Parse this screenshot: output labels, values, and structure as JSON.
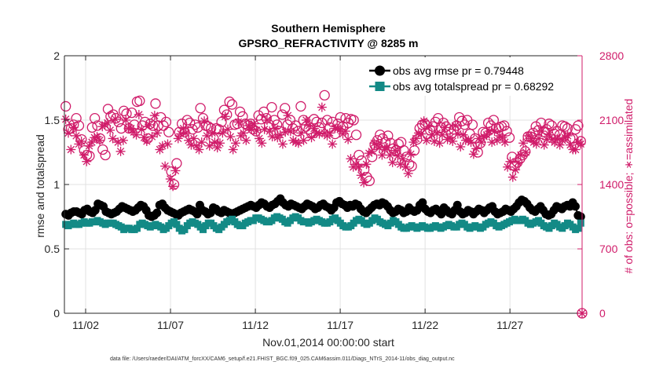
{
  "colors": {
    "rmse": "#000000",
    "spread": "#138a86",
    "obs": "#d01c6a",
    "grid": "#e2e2e2",
    "axis": "#262626"
  },
  "chart_data": {
    "type": "line",
    "title": "Southern Hemisphere",
    "subtitle": "GPSRO_REFRACTIVITY @ 8285 m",
    "xlabel": "Nov.01,2014 00:00:00 start",
    "ylabel_left": "rmse and totalspread",
    "ylabel_right": "# of obs: o=possible; ∗=assimilated",
    "footer": "data file: /Users/raeder/DAI/ATM_forcXX/CAM6_setup/f.e21.FHIST_BGC.f09_025.CAM6assim.011/Diags_NTrS_2014-11/obs_diag_output.nc",
    "xlim": [
      0.25,
      30.75
    ],
    "ylim_left": [
      0,
      2
    ],
    "ylim_right": [
      0,
      2800
    ],
    "x_tick_values": [
      1.5,
      6.5,
      11.5,
      16.5,
      21.5,
      26.5
    ],
    "x_tick_labels": [
      "11/02",
      "11/07",
      "11/12",
      "11/17",
      "11/22",
      "11/27"
    ],
    "y_left_ticks": [
      "0",
      "0.5",
      "1",
      "1.5",
      "2"
    ],
    "y_left_tick_values": [
      0,
      0.5,
      1,
      1.5,
      2
    ],
    "y_right_ticks": [
      "0",
      "700",
      "1400",
      "2100",
      "2800"
    ],
    "y_right_tick_values": [
      0,
      700,
      1400,
      2100,
      2800
    ],
    "grid": true,
    "legend_position": "top-right",
    "series": [
      {
        "name": "obs avg rmse pr = 0.79448",
        "axis": "left",
        "marker": "circle",
        "key": "rmse",
        "values": [
          0.77,
          0.76,
          0.78,
          0.79,
          0.79,
          0.78,
          0.77,
          0.8,
          0.81,
          0.79,
          0.78,
          0.8,
          0.85,
          0.84,
          0.83,
          0.79,
          0.78,
          0.77,
          0.78,
          0.79,
          0.81,
          0.83,
          0.82,
          0.81,
          0.8,
          0.79,
          0.8,
          0.82,
          0.84,
          0.83,
          0.8,
          0.76,
          0.75,
          0.76,
          0.78,
          0.84,
          0.85,
          0.82,
          0.8,
          0.79,
          0.78,
          0.77,
          0.76,
          0.78,
          0.79,
          0.8,
          0.81,
          0.8,
          0.79,
          0.77,
          0.84,
          0.8,
          0.79,
          0.77,
          0.78,
          0.82,
          0.81,
          0.79,
          0.78,
          0.8,
          0.79,
          0.78,
          0.77,
          0.78,
          0.79,
          0.8,
          0.81,
          0.82,
          0.83,
          0.84,
          0.83,
          0.82,
          0.84,
          0.86,
          0.85,
          0.83,
          0.82,
          0.84,
          0.85,
          0.87,
          0.89,
          0.86,
          0.84,
          0.83,
          0.85,
          0.84,
          0.83,
          0.82,
          0.81,
          0.83,
          0.85,
          0.84,
          0.83,
          0.81,
          0.82,
          0.84,
          0.85,
          0.83,
          0.82,
          0.8,
          0.82,
          0.86,
          0.87,
          0.85,
          0.84,
          0.82,
          0.84,
          0.83,
          0.85,
          0.84,
          0.81,
          0.79,
          0.78,
          0.8,
          0.82,
          0.84,
          0.85,
          0.84,
          0.86,
          0.85,
          0.83,
          0.8,
          0.78,
          0.79,
          0.81,
          0.8,
          0.78,
          0.79,
          0.82,
          0.8,
          0.79,
          0.8,
          0.84,
          0.86,
          0.81,
          0.79,
          0.78,
          0.8,
          0.81,
          0.79,
          0.77,
          0.82,
          0.8,
          0.78,
          0.77,
          0.8,
          0.84,
          0.79,
          0.77,
          0.78,
          0.8,
          0.79,
          0.77,
          0.79,
          0.81,
          0.8,
          0.78,
          0.8,
          0.82,
          0.83,
          0.79,
          0.77,
          0.78,
          0.79,
          0.81,
          0.8,
          0.79,
          0.81,
          0.83,
          0.86,
          0.88,
          0.87,
          0.85,
          0.82,
          0.8,
          0.79,
          0.81,
          0.83,
          0.8,
          0.77,
          0.76,
          0.77,
          0.8,
          0.83,
          0.82,
          0.81,
          0.83,
          0.84,
          0.83,
          0.86,
          0.83,
          0.76,
          0.75
        ]
      },
      {
        "name": "obs avg totalspread pr = 0.68292",
        "axis": "left",
        "marker": "square",
        "key": "spread",
        "values": [
          0.69,
          0.68,
          0.69,
          0.7,
          0.69,
          0.69,
          0.7,
          0.71,
          0.7,
          0.7,
          0.71,
          0.71,
          0.72,
          0.71,
          0.7,
          0.69,
          0.7,
          0.7,
          0.7,
          0.69,
          0.68,
          0.67,
          0.65,
          0.66,
          0.66,
          0.65,
          0.65,
          0.66,
          0.69,
          0.7,
          0.69,
          0.68,
          0.67,
          0.68,
          0.69,
          0.68,
          0.67,
          0.65,
          0.66,
          0.68,
          0.7,
          0.71,
          0.69,
          0.66,
          0.64,
          0.65,
          0.68,
          0.7,
          0.71,
          0.7,
          0.69,
          0.67,
          0.65,
          0.68,
          0.7,
          0.7,
          0.68,
          0.66,
          0.65,
          0.67,
          0.69,
          0.71,
          0.72,
          0.73,
          0.71,
          0.69,
          0.68,
          0.68,
          0.7,
          0.71,
          0.72,
          0.72,
          0.74,
          0.74,
          0.73,
          0.72,
          0.71,
          0.71,
          0.72,
          0.74,
          0.75,
          0.74,
          0.73,
          0.71,
          0.7,
          0.72,
          0.74,
          0.75,
          0.74,
          0.72,
          0.71,
          0.71,
          0.7,
          0.71,
          0.72,
          0.73,
          0.72,
          0.71,
          0.7,
          0.7,
          0.71,
          0.73,
          0.74,
          0.72,
          0.7,
          0.68,
          0.67,
          0.67,
          0.68,
          0.7,
          0.72,
          0.73,
          0.72,
          0.7,
          0.69,
          0.7,
          0.72,
          0.74,
          0.73,
          0.71,
          0.7,
          0.69,
          0.68,
          0.7,
          0.72,
          0.71,
          0.69,
          0.67,
          0.66,
          0.66,
          0.67,
          0.68,
          0.67,
          0.66,
          0.67,
          0.68,
          0.67,
          0.66,
          0.66,
          0.67,
          0.68,
          0.67,
          0.66,
          0.67,
          0.68,
          0.69,
          0.68,
          0.67,
          0.67,
          0.69,
          0.7,
          0.69,
          0.67,
          0.66,
          0.67,
          0.68,
          0.67,
          0.66,
          0.67,
          0.69,
          0.7,
          0.71,
          0.7,
          0.68,
          0.67,
          0.68,
          0.69,
          0.7,
          0.71,
          0.72,
          0.73,
          0.72,
          0.72,
          0.73,
          0.72,
          0.7,
          0.69,
          0.7,
          0.71,
          0.72,
          0.7,
          0.68,
          0.67,
          0.66,
          0.68,
          0.7,
          0.69,
          0.67,
          0.66,
          0.68,
          0.7,
          0.69,
          0.67,
          0.65,
          0.66,
          0.7
        ]
      },
      {
        "name": "possible",
        "axis": "right",
        "marker": "circle-open",
        "key": "obs",
        "values": [
          2250,
          2000,
          2010,
          2050,
          2120,
          2040,
          1890,
          1770,
          1720,
          1710,
          2020,
          2120,
          2040,
          1900,
          1780,
          1720,
          2220,
          2140,
          2160,
          2120,
          2080,
          2010,
          2200,
          2170,
          2010,
          2180,
          2050,
          2300,
          2310,
          2040,
          2080,
          1900,
          2060,
          2040,
          2280,
          2040,
          2130,
          2040,
          2080,
          1970,
          1540,
          1400,
          1630,
          1970,
          2060,
          1970,
          2100,
          2070,
          2000,
          2050,
          2020,
          2230,
          2120,
          2040,
          2030,
          2010,
          1900,
          2010,
          2000,
          2080,
          2210,
          2160,
          2300,
          2270,
          2050,
          2060,
          2190,
          2140,
          2060,
          2040,
          2060,
          2000,
          1980,
          2150,
          2110,
          2190,
          2120,
          2050,
          2240,
          2100,
          2050,
          1980,
          2160,
          2230,
          2050,
          2100,
          2010,
          2040,
          1980,
          2250,
          2100,
          2030,
          2000,
          1960,
          2110,
          2080,
          2020,
          2070,
          2370,
          2100,
          2020,
          2080,
          1950,
          2060,
          2130,
          2030,
          2120,
          2070,
          2110,
          2100,
          1940,
          1720,
          1660,
          1560,
          1480,
          1440,
          1700,
          1830,
          1880,
          1940,
          1900,
          1860,
          1930,
          1850,
          1790,
          1770,
          1840,
          1860,
          1770,
          1700,
          1620,
          1600,
          1770,
          1890,
          2010,
          2050,
          2060,
          1950,
          1990,
          2030,
          2080,
          2120,
          2020,
          2070,
          2030,
          2000,
          1950,
          2000,
          2040,
          2130,
          2090,
          2050,
          2100,
          1950,
          2050,
          1900,
          1750,
          1850,
          1970,
          1960,
          2070,
          2040,
          2100,
          2010,
          2020,
          2030,
          2040,
          1980,
          1910,
          1700,
          1600,
          1640,
          1680,
          1720,
          1760,
          1920,
          1920,
          1960,
          2030,
          1990,
          2070,
          1970,
          2000,
          2060,
          2040,
          1950,
          1980,
          1940,
          2040,
          2030,
          2010,
          1900,
          1900,
          2000,
          2040,
          1870
        ]
      },
      {
        "name": "assimilated",
        "axis": "right",
        "marker": "asterisk",
        "key": "obs",
        "values": [
          2110,
          1960,
          1780,
          2020,
          1930,
          1840,
          1870,
          1720,
          1650,
          1820,
          1860,
          1910,
          1920,
          1880,
          2030,
          2050,
          2070,
          1990,
          1900,
          2110,
          1860,
          1760,
          1880,
          2100,
          2010,
          2010,
          1970,
          1940,
          2160,
          2000,
          1910,
          1870,
          2050,
          1920,
          2150,
          1960,
          1780,
          1820,
          1600,
          1840,
          1460,
          1380,
          1550,
          1900,
          1950,
          2010,
          1960,
          1880,
          1830,
          1900,
          1820,
          1780,
          1860,
          2090,
          1930,
          1820,
          1960,
          1860,
          1800,
          1850,
          1960,
          2140,
          2000,
          1920,
          1780,
          1850,
          2080,
          1930,
          1960,
          1880,
          2040,
          2000,
          2060,
          1990,
          1900,
          1850,
          2000,
          2100,
          1980,
          1920,
          2010,
          1910,
          1940,
          1840,
          1970,
          2150,
          1980,
          1880,
          1860,
          1850,
          1960,
          1880,
          2100,
          2040,
          1910,
          2010,
          1960,
          1950,
          2240,
          1960,
          1930,
          1960,
          1840,
          2010,
          2010,
          2000,
          1950,
          1980,
          1890,
          1680,
          1590,
          1620,
          1590,
          1500,
          1420,
          1620,
          1740,
          1760,
          1850,
          1830,
          1800,
          1720,
          1780,
          1800,
          1720,
          1640,
          1770,
          1710,
          1620,
          1680,
          1590,
          1520,
          1730,
          1860,
          1900,
          1960,
          1950,
          2090,
          1880,
          2030,
          1940,
          1870,
          1960,
          1850,
          1940,
          2020,
          1890,
          1910,
          1870,
          2040,
          1950,
          1810,
          1940,
          1880,
          1880,
          1860,
          1730,
          1790,
          1900,
          1860,
          1920,
          1940,
          1980,
          1860,
          1980,
          1880,
          1930,
          1910,
          1860,
          1590,
          1650,
          1480,
          1560,
          1640,
          1720,
          1850,
          1750,
          1930,
          1900,
          1860,
          1840,
          1900,
          1980,
          1830,
          1890,
          1940,
          1890,
          1860,
          1900,
          1830,
          1880,
          1910,
          1930,
          1830,
          1780,
          1780,
          1860,
          1840
        ]
      }
    ],
    "end_markers": [
      {
        "x": 30.75,
        "value": 0,
        "axis": "right",
        "marker": "circle-open"
      },
      {
        "x": 30.75,
        "value": 0,
        "axis": "right",
        "marker": "asterisk"
      }
    ]
  }
}
